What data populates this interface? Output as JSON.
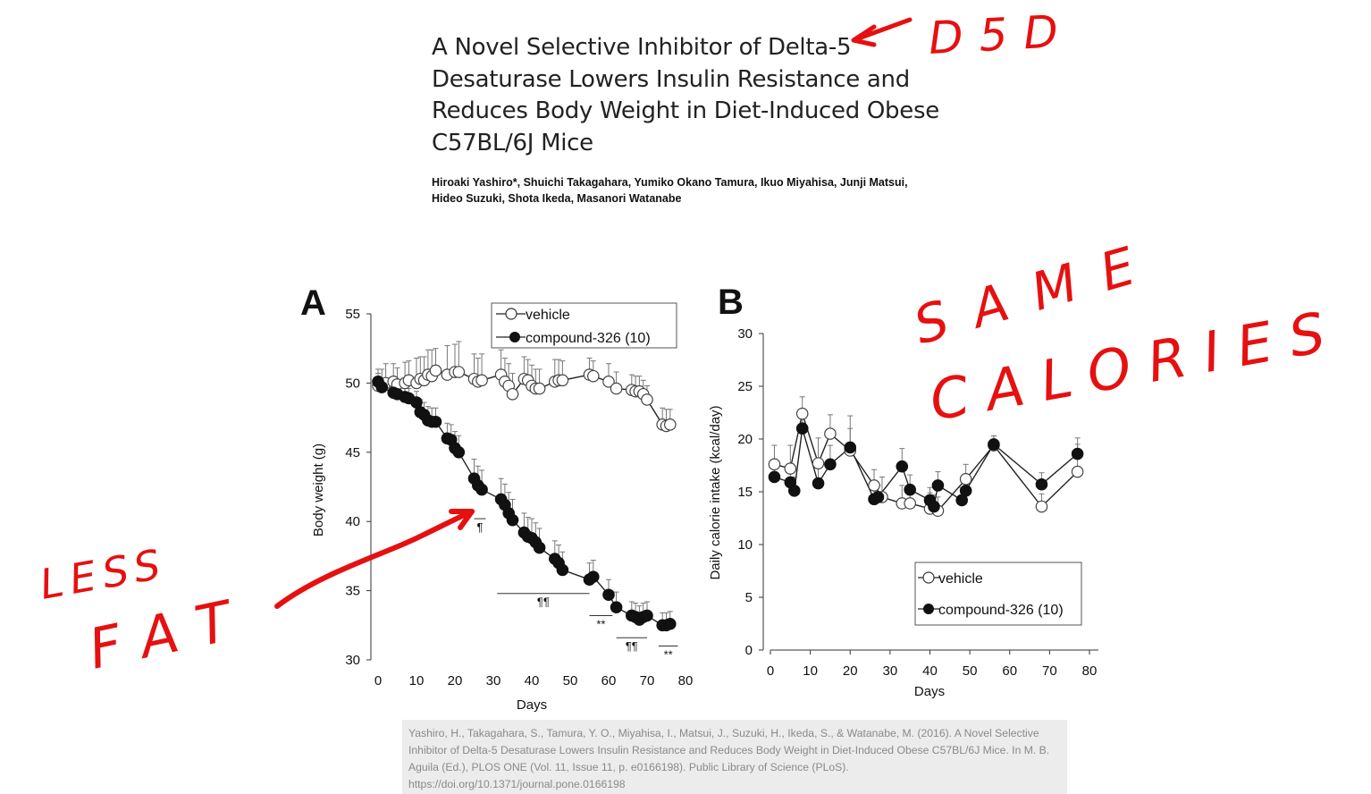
{
  "paper": {
    "title": "A Novel Selective Inhibitor of Delta-5 Desaturase Lowers Insulin Resistance and Reduces Body Weight in Diet-Induced Obese C57BL/6J Mice",
    "authors": "Hiroaki Yashiro*, Shuichi Takagahara, Yumiko Okano Tamura, Ikuo Miyahisa, Junji Matsui, Hideo Suzuki, Shota Ikeda, Masanori Watanabe",
    "citation": "Yashiro, H., Takagahara, S., Tamura, Y. O., Miyahisa, I., Matsui, J., Suzuki, H., Ikeda, S., & Watanabe, M. (2016). A Novel Selective Inhibitor of Delta-5 Desaturase Lowers Insulin Resistance and Reduces Body Weight in Diet-Induced Obese C57BL/6J Mice. In M. B. Aguila (Ed.), PLOS ONE (Vol. 11, Issue 11, p. e0166198). Public Library of Science (PLoS). https://doi.org/10.1371/journal.pone.0166198"
  },
  "annotations": {
    "d5d": "D5D",
    "same": "SAME",
    "calories": "CALORIES",
    "less": "LESS",
    "fat": "FAT",
    "color": "#e61010"
  },
  "chart_data": [
    {
      "type": "line",
      "panel_label": "A",
      "xlabel": "Days",
      "ylabel": "Body weight (g)",
      "xlim": [
        0,
        80
      ],
      "ylim": [
        30,
        55
      ],
      "xticks": [
        0,
        10,
        20,
        30,
        40,
        50,
        60,
        70,
        80
      ],
      "yticks": [
        30,
        35,
        40,
        45,
        50,
        55
      ],
      "legend_position": "top",
      "series": [
        {
          "name": "vehicle",
          "marker": "open-circle",
          "x": [
            0,
            1,
            2,
            4,
            5,
            7,
            8,
            10,
            11,
            12,
            13,
            14,
            15,
            18,
            20,
            21,
            25,
            26,
            27,
            32,
            33,
            34,
            35,
            38,
            39,
            40,
            41,
            42,
            46,
            47,
            48,
            55,
            56,
            60,
            62,
            66,
            67,
            68,
            69,
            70,
            74,
            75,
            76
          ],
          "y": [
            49.8,
            49.9,
            50.0,
            50.1,
            49.9,
            50.0,
            50.2,
            50.0,
            50.3,
            50.2,
            50.6,
            50.5,
            50.9,
            50.6,
            50.8,
            50.8,
            50.3,
            50.1,
            50.2,
            50.6,
            50.1,
            49.8,
            49.2,
            50.3,
            50.2,
            49.8,
            49.6,
            49.6,
            50.1,
            50.2,
            50.2,
            50.6,
            50.5,
            50.1,
            49.6,
            49.5,
            49.4,
            49.4,
            49.2,
            48.8,
            47.0,
            46.9,
            47.0
          ],
          "error_upper": [
            1.2,
            1.1,
            1.4,
            1.3,
            1.2,
            1.5,
            1.4,
            1.8,
            1.6,
            1.7,
            1.8,
            1.9,
            1.6,
            2.1,
            2.0,
            2.2,
            1.8,
            1.7,
            1.9,
            1.8,
            1.7,
            1.6,
            1.5,
            1.6,
            1.5,
            1.5,
            1.4,
            1.4,
            1.6,
            1.5,
            1.4,
            1.2,
            1.1,
            1.3,
            1.2,
            1.1,
            1.1,
            1.1,
            1.0,
            1.0,
            1.2,
            1.2,
            1.1
          ]
        },
        {
          "name": "compound-326 (10)",
          "marker": "filled-circle",
          "x": [
            0,
            1,
            4,
            5,
            7,
            8,
            10,
            11,
            12,
            13,
            14,
            15,
            18,
            19,
            20,
            21,
            25,
            26,
            27,
            32,
            33,
            34,
            35,
            38,
            39,
            40,
            41,
            42,
            46,
            47,
            48,
            55,
            56,
            60,
            62,
            66,
            67,
            68,
            69,
            70,
            74,
            75,
            76
          ],
          "y": [
            50.1,
            49.7,
            49.3,
            49.2,
            49.0,
            48.9,
            48.6,
            47.9,
            47.7,
            47.3,
            47.2,
            47.2,
            46.0,
            45.9,
            45.3,
            45.0,
            43.1,
            42.6,
            42.3,
            41.6,
            41.2,
            40.6,
            40.1,
            39.2,
            38.9,
            38.8,
            38.5,
            38.1,
            37.3,
            37.0,
            36.5,
            35.8,
            36.0,
            34.7,
            33.8,
            33.2,
            33.1,
            32.9,
            33.1,
            33.2,
            32.5,
            32.5,
            32.6
          ],
          "error_upper": [
            0.6,
            0.6,
            0.7,
            0.7,
            0.7,
            0.7,
            0.8,
            0.9,
            0.9,
            1.0,
            1.0,
            1.0,
            1.1,
            1.1,
            1.2,
            1.2,
            1.4,
            1.4,
            1.4,
            1.5,
            1.5,
            1.5,
            1.5,
            1.4,
            1.4,
            1.4,
            1.4,
            1.4,
            1.3,
            1.3,
            1.3,
            1.2,
            1.2,
            1.1,
            1.1,
            1.0,
            1.0,
            1.0,
            1.0,
            1.0,
            0.9,
            0.9,
            0.9
          ]
        }
      ],
      "significance": [
        {
          "label": "¶",
          "x_range": [
            25,
            28
          ],
          "y": 40.2
        },
        {
          "label": "¶¶",
          "x_range": [
            31,
            55
          ],
          "y": 34.8
        },
        {
          "label": "**",
          "x_range": [
            55,
            61
          ],
          "y": 33.2
        },
        {
          "label": "¶¶",
          "x_range": [
            62,
            70
          ],
          "y": 31.6
        },
        {
          "label": "**",
          "x_range": [
            73,
            78
          ],
          "y": 31.0
        }
      ]
    },
    {
      "type": "line",
      "panel_label": "B",
      "xlabel": "Days",
      "ylabel": "Daily calorie intake (kcal/day)",
      "xlim": [
        0,
        80
      ],
      "ylim": [
        0,
        30
      ],
      "xticks": [
        0,
        10,
        20,
        30,
        40,
        50,
        60,
        70,
        80
      ],
      "yticks": [
        0,
        5,
        10,
        15,
        20,
        25,
        30
      ],
      "legend_position": "bottom-right",
      "series": [
        {
          "name": "vehicle",
          "marker": "open-circle",
          "x": [
            1,
            5,
            8,
            12,
            15,
            20,
            26,
            28,
            33,
            35,
            40,
            42,
            49,
            56,
            68,
            77
          ],
          "y": [
            17.6,
            17.2,
            22.4,
            17.7,
            20.5,
            18.9,
            15.6,
            14.5,
            13.9,
            13.9,
            13.4,
            13.2,
            16.2,
            19.4,
            13.6,
            16.9
          ],
          "error_upper": [
            1.8,
            2.2,
            1.6,
            2.4,
            1.8,
            2.1,
            1.5,
            1.9,
            1.7,
            1.4,
            1.5,
            1.3,
            1.4,
            0.9,
            1.2,
            2.6
          ]
        },
        {
          "name": "compound-326 (10)",
          "marker": "filled-circle",
          "x": [
            1,
            5,
            6,
            8,
            12,
            15,
            20,
            26,
            27,
            33,
            35,
            40,
            41,
            42,
            48,
            49,
            56,
            68,
            77
          ],
          "y": [
            16.4,
            15.9,
            15.1,
            21.0,
            15.8,
            17.6,
            19.2,
            14.3,
            14.5,
            17.4,
            15.2,
            14.2,
            13.6,
            15.6,
            14.2,
            15.1,
            19.5,
            15.7,
            18.6
          ],
          "error_upper": [
            1.4,
            1.5,
            1.3,
            1.6,
            1.6,
            1.8,
            3.0,
            1.2,
            1.1,
            1.7,
            1.4,
            1.2,
            1.1,
            1.3,
            1.2,
            1.2,
            0.8,
            1.1,
            1.5
          ]
        }
      ]
    }
  ]
}
